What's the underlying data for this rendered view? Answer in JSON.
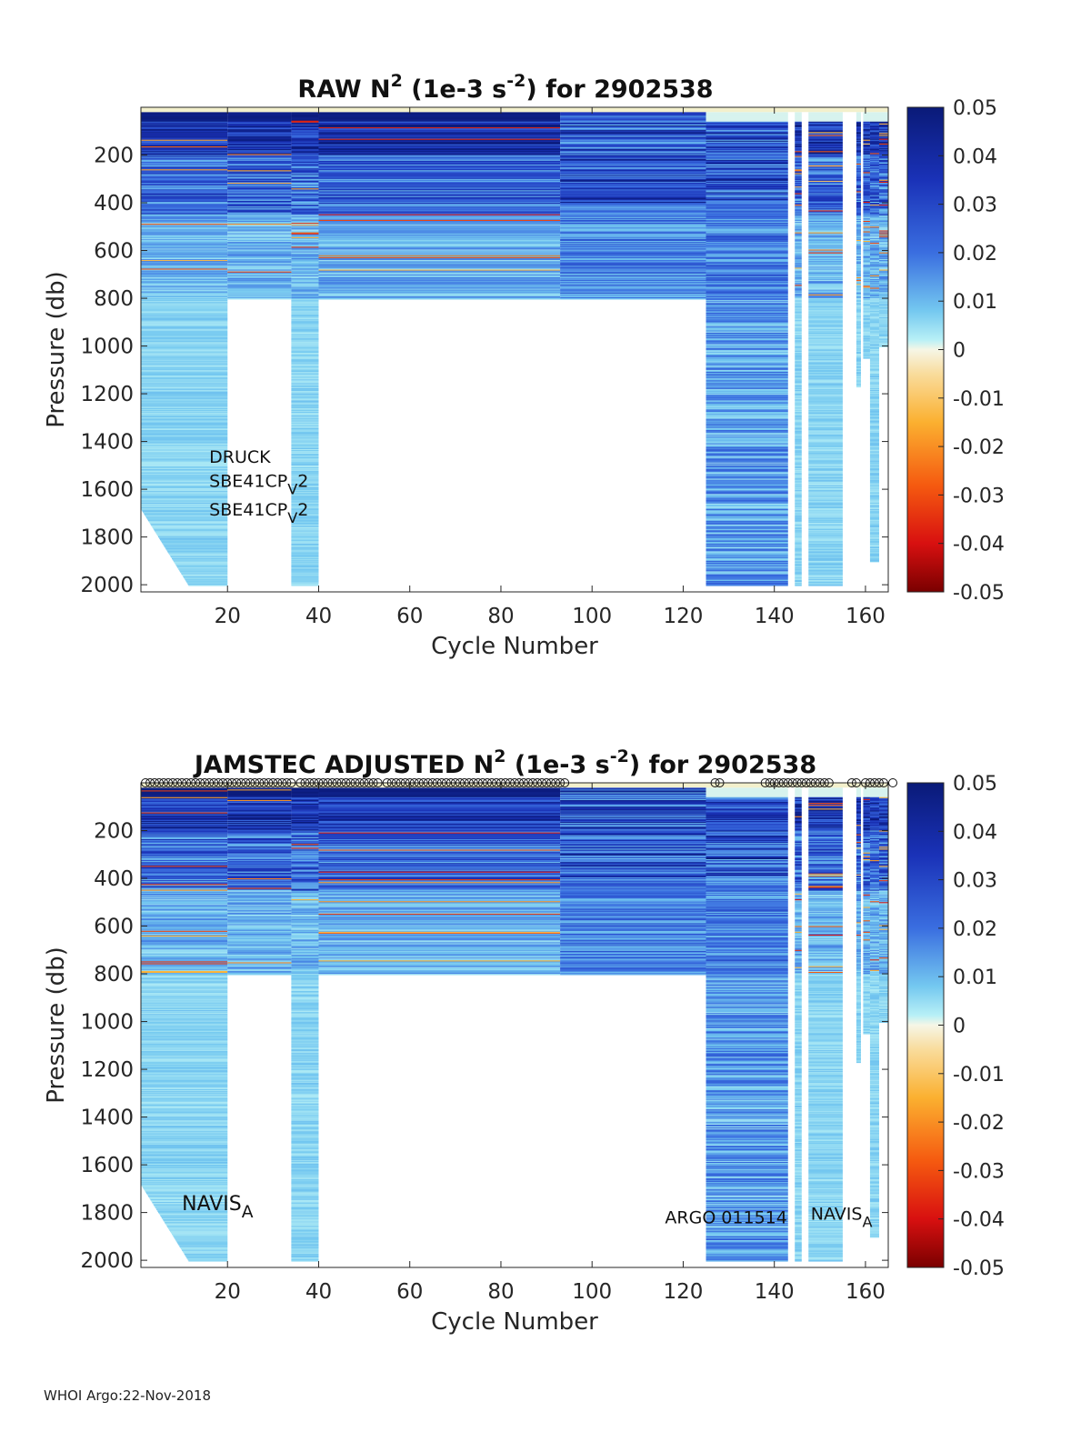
{
  "footer": "WHOI Argo:22-Nov-2018",
  "chart_data": [
    {
      "type": "heatmap",
      "title_parts": [
        "RAW N",
        "2",
        " (1e-3 s",
        "-2",
        ") for 2902538"
      ],
      "xlabel": "Cycle Number",
      "ylabel": "Pressure (db)",
      "xlim": [
        1,
        165
      ],
      "ylim": [
        2030,
        0
      ],
      "x_ticks": [
        20,
        40,
        60,
        80,
        100,
        120,
        140,
        160
      ],
      "y_ticks": [
        200,
        400,
        600,
        800,
        1000,
        1200,
        1400,
        1600,
        1800,
        2000
      ],
      "colorbar": {
        "min": -0.05,
        "max": 0.05,
        "ticks": [
          "0.05",
          "0.04",
          "0.03",
          "0.02",
          "0.01",
          "0",
          "-0.01",
          "-0.02",
          "-0.03",
          "-0.04",
          "-0.05"
        ]
      },
      "annotations": [
        {
          "text": "DRUCK",
          "x": 16,
          "y": 1490
        },
        {
          "text": "SBE41CP",
          "sub": "V",
          "tail": "2",
          "x": 16,
          "y": 1590
        },
        {
          "text": "SBE41CP",
          "sub": "V",
          "tail": "2",
          "x": 16,
          "y": 1710
        }
      ],
      "columns": [
        {
          "from": 1,
          "to": 20,
          "max_p": [
            1680,
            2000
          ]
        },
        {
          "from": 34,
          "to": 40,
          "max_p": 2000
        },
        {
          "from": 20,
          "to": 34,
          "max_p": 800
        },
        {
          "from": 40,
          "to": 93,
          "max_p": 800
        },
        {
          "from": 93,
          "to": 125,
          "max_p": 800,
          "style": "striped"
        },
        {
          "from": 125,
          "to": 143,
          "max_p": 2000,
          "style": "striped_upper"
        },
        {
          "from": 144.5,
          "to": 146,
          "max_p": 2000
        },
        {
          "from": 147.5,
          "to": 155,
          "max_p": 2000
        },
        {
          "from": 158,
          "to": 159,
          "max_p": 1170
        },
        {
          "from": 159.5,
          "to": 161,
          "max_p": 1050
        },
        {
          "from": 161,
          "to": 163,
          "max_p": 1900
        },
        {
          "from": 163,
          "to": 165,
          "max_p": 1000
        }
      ],
      "surface_markers": []
    },
    {
      "type": "heatmap",
      "title_parts": [
        "JAMSTEC  ADJUSTED N",
        "2",
        " (1e-3 s",
        "-2",
        ") for 2902538"
      ],
      "xlabel": "Cycle Number",
      "ylabel": "Pressure (db)",
      "xlim": [
        1,
        165
      ],
      "ylim": [
        2030,
        0
      ],
      "x_ticks": [
        20,
        40,
        60,
        80,
        100,
        120,
        140,
        160
      ],
      "y_ticks": [
        200,
        400,
        600,
        800,
        1000,
        1200,
        1400,
        1600,
        1800,
        2000
      ],
      "colorbar": {
        "min": -0.05,
        "max": 0.05,
        "ticks": [
          "0.05",
          "0.04",
          "0.03",
          "0.02",
          "0.01",
          "0",
          "-0.01",
          "-0.02",
          "-0.03",
          "-0.04",
          "-0.05"
        ]
      },
      "annotations": [
        {
          "text": "NAVIS",
          "sub": "A",
          "tail": "",
          "x": 10,
          "y": 1790,
          "size": 22
        },
        {
          "text": "ARGO 011514",
          "x": 116,
          "y": 1845
        },
        {
          "text": "NAVIS",
          "sub": "A",
          "tail": "",
          "x": 148,
          "y": 1830
        }
      ],
      "columns": [
        {
          "from": 1,
          "to": 20,
          "max_p": [
            1680,
            2000
          ]
        },
        {
          "from": 34,
          "to": 40,
          "max_p": 2000
        },
        {
          "from": 20,
          "to": 34,
          "max_p": 800
        },
        {
          "from": 40,
          "to": 93,
          "max_p": 800
        },
        {
          "from": 93,
          "to": 125,
          "max_p": 800,
          "style": "striped"
        },
        {
          "from": 125,
          "to": 143,
          "max_p": 2000,
          "style": "striped_upper"
        },
        {
          "from": 144.5,
          "to": 146,
          "max_p": 2000
        },
        {
          "from": 147.5,
          "to": 155,
          "max_p": 2000
        },
        {
          "from": 158,
          "to": 159,
          "max_p": 1170
        },
        {
          "from": 159.5,
          "to": 161,
          "max_p": 1050
        },
        {
          "from": 161,
          "to": 163,
          "max_p": 1900
        },
        {
          "from": 163,
          "to": 165,
          "max_p": 1000
        }
      ],
      "surface_markers": [
        2,
        3,
        4,
        5,
        6,
        7,
        8,
        9,
        10,
        11,
        12,
        13,
        14,
        15,
        16,
        17,
        18,
        19,
        20,
        21,
        22,
        23,
        24,
        25,
        26,
        27,
        28,
        29,
        30,
        31,
        32,
        33,
        34,
        36,
        37,
        38,
        39,
        40,
        41,
        42,
        43,
        44,
        45,
        46,
        47,
        48,
        49,
        50,
        51,
        52,
        53,
        55,
        56,
        57,
        58,
        59,
        60,
        61,
        62,
        63,
        64,
        65,
        66,
        67,
        68,
        69,
        70,
        71,
        72,
        73,
        74,
        75,
        76,
        77,
        78,
        79,
        80,
        81,
        82,
        83,
        84,
        85,
        86,
        87,
        88,
        89,
        90,
        91,
        92,
        93,
        94,
        127,
        128,
        138,
        139,
        140,
        141,
        142,
        143,
        144,
        145,
        146,
        147,
        148,
        149,
        150,
        151,
        152,
        157,
        158,
        160,
        161,
        162,
        163,
        164,
        166
      ]
    }
  ]
}
